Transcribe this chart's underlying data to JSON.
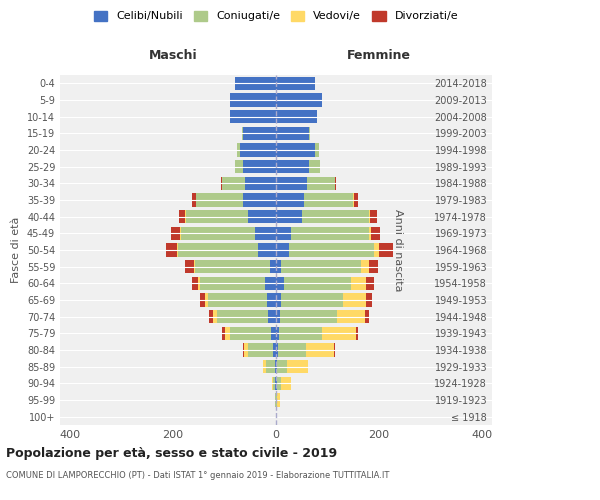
{
  "age_groups": [
    "100+",
    "95-99",
    "90-94",
    "85-89",
    "80-84",
    "75-79",
    "70-74",
    "65-69",
    "60-64",
    "55-59",
    "50-54",
    "45-49",
    "40-44",
    "35-39",
    "30-34",
    "25-29",
    "20-24",
    "15-19",
    "10-14",
    "5-9",
    "0-4"
  ],
  "birth_years": [
    "≤ 1918",
    "1919-1923",
    "1924-1928",
    "1929-1933",
    "1934-1938",
    "1939-1943",
    "1944-1948",
    "1949-1953",
    "1954-1958",
    "1959-1963",
    "1964-1968",
    "1969-1973",
    "1974-1978",
    "1979-1983",
    "1984-1988",
    "1989-1993",
    "1994-1998",
    "1999-2003",
    "2004-2008",
    "2009-2013",
    "2014-2018"
  ],
  "male": {
    "celibi": [
      0,
      0,
      1,
      2,
      5,
      10,
      15,
      18,
      22,
      12,
      35,
      40,
      55,
      65,
      60,
      65,
      70,
      65,
      90,
      90,
      80
    ],
    "coniugati": [
      0,
      1,
      5,
      18,
      50,
      80,
      100,
      115,
      125,
      145,
      155,
      145,
      120,
      90,
      45,
      15,
      5,
      1,
      0,
      0,
      0
    ],
    "vedovi": [
      0,
      0,
      2,
      5,
      8,
      10,
      8,
      5,
      4,
      2,
      2,
      1,
      1,
      0,
      0,
      0,
      0,
      0,
      0,
      0,
      0
    ],
    "divorziati": [
      0,
      0,
      0,
      0,
      2,
      5,
      8,
      10,
      12,
      18,
      22,
      18,
      12,
      8,
      2,
      0,
      0,
      0,
      0,
      0,
      0
    ]
  },
  "female": {
    "nubili": [
      0,
      0,
      1,
      2,
      3,
      5,
      8,
      10,
      15,
      10,
      25,
      30,
      50,
      55,
      60,
      65,
      75,
      65,
      80,
      90,
      75
    ],
    "coniugate": [
      0,
      2,
      8,
      20,
      55,
      85,
      110,
      120,
      130,
      155,
      165,
      150,
      130,
      95,
      55,
      20,
      8,
      2,
      0,
      0,
      0
    ],
    "vedove": [
      0,
      5,
      20,
      40,
      55,
      65,
      55,
      45,
      30,
      15,
      10,
      5,
      2,
      1,
      0,
      0,
      0,
      0,
      0,
      0,
      0
    ],
    "divorziate": [
      0,
      0,
      0,
      0,
      2,
      5,
      8,
      12,
      15,
      18,
      28,
      18,
      15,
      8,
      2,
      0,
      0,
      0,
      0,
      0,
      0
    ]
  },
  "colors": {
    "celibi_nubili": "#4472C4",
    "coniugati": "#AECA8A",
    "vedovi": "#FFD966",
    "divorziati": "#C0392B"
  },
  "xlim": [
    -420,
    420
  ],
  "xticks": [
    -400,
    -200,
    0,
    200,
    400
  ],
  "xticklabels": [
    "400",
    "200",
    "0",
    "200",
    "400"
  ],
  "title": "Popolazione per età, sesso e stato civile - 2019",
  "subtitle": "COMUNE DI LAMPORECCHIO (PT) - Dati ISTAT 1° gennaio 2019 - Elaborazione TUTTITALIA.IT",
  "ylabel_left": "Fasce di età",
  "ylabel_right": "Anni di nascita",
  "label_maschi": "Maschi",
  "label_femmine": "Femmine",
  "legend_labels": [
    "Celibi/Nubili",
    "Coniugati/e",
    "Vedovi/e",
    "Divorziati/e"
  ],
  "bg_color": "#f0f0f0",
  "bar_height": 0.8
}
